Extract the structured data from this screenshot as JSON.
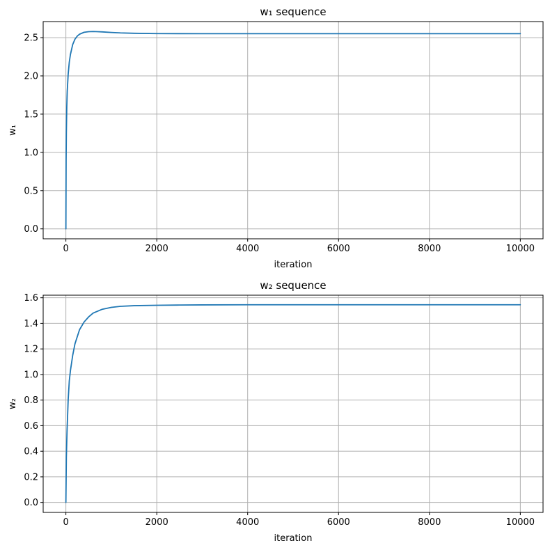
{
  "chart_data": [
    {
      "type": "line",
      "title": "w₁ sequence",
      "xlabel": "iteration",
      "ylabel": "w₁",
      "xlim": [
        -500,
        10500
      ],
      "ylim": [
        -0.13,
        2.71
      ],
      "xticks": [
        0,
        2000,
        4000,
        6000,
        8000,
        10000
      ],
      "xtick_labels": [
        "0",
        "2000",
        "4000",
        "6000",
        "8000",
        "10000"
      ],
      "yticks": [
        0.0,
        0.5,
        1.0,
        1.5,
        2.0,
        2.5
      ],
      "ytick_labels": [
        "0.0",
        "0.5",
        "1.0",
        "1.5",
        "2.0",
        "2.5"
      ],
      "grid": true,
      "series": [
        {
          "color": "#1f77b4",
          "x": [
            0,
            5,
            10,
            20,
            30,
            50,
            75,
            100,
            150,
            200,
            250,
            300,
            400,
            500,
            600,
            700,
            800,
            1000,
            1200,
            1500,
            2000,
            3000,
            5000,
            7500,
            10000
          ],
          "y": [
            0.0,
            0.9,
            1.25,
            1.6,
            1.8,
            2.02,
            2.18,
            2.28,
            2.41,
            2.48,
            2.52,
            2.545,
            2.57,
            2.578,
            2.58,
            2.578,
            2.575,
            2.568,
            2.562,
            2.557,
            2.553,
            2.552,
            2.552,
            2.552,
            2.552
          ]
        }
      ]
    },
    {
      "type": "line",
      "title": "w₂ sequence",
      "xlabel": "iteration",
      "ylabel": "w₂",
      "xlim": [
        -500,
        10500
      ],
      "ylim": [
        -0.078,
        1.62
      ],
      "xticks": [
        0,
        2000,
        4000,
        6000,
        8000,
        10000
      ],
      "xtick_labels": [
        "0",
        "2000",
        "4000",
        "6000",
        "8000",
        "10000"
      ],
      "yticks": [
        0.0,
        0.2,
        0.4,
        0.6,
        0.8,
        1.0,
        1.2,
        1.4,
        1.6
      ],
      "ytick_labels": [
        "0.0",
        "0.2",
        "0.4",
        "0.6",
        "0.8",
        "1.0",
        "1.2",
        "1.4",
        "1.6"
      ],
      "grid": true,
      "series": [
        {
          "color": "#1f77b4",
          "x": [
            0,
            10,
            25,
            50,
            75,
            100,
            150,
            200,
            300,
            400,
            500,
            600,
            800,
            1000,
            1200,
            1500,
            2000,
            2500,
            3000,
            4000,
            5000,
            7500,
            10000
          ],
          "y": [
            0.0,
            0.35,
            0.55,
            0.8,
            0.95,
            1.03,
            1.15,
            1.24,
            1.35,
            1.41,
            1.45,
            1.48,
            1.51,
            1.525,
            1.533,
            1.538,
            1.541,
            1.543,
            1.544,
            1.545,
            1.545,
            1.545,
            1.545
          ]
        }
      ]
    }
  ]
}
